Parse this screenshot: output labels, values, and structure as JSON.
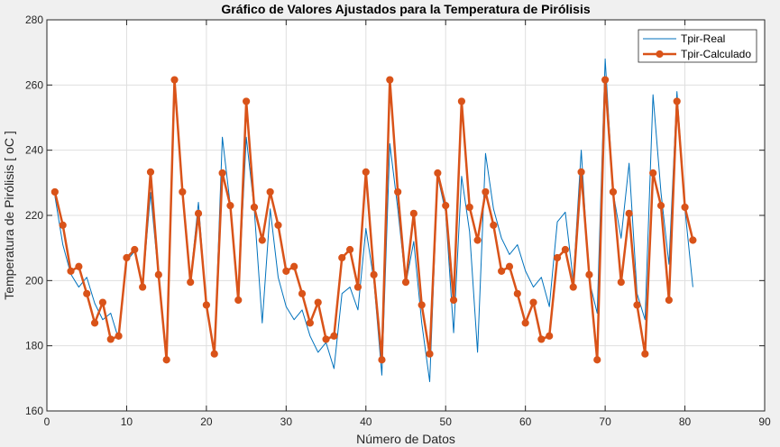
{
  "chart_data": {
    "type": "line",
    "title": "Gráfico de Valores Ajustados para la Temperatura de Pirólisis",
    "xlabel": "Número de Datos",
    "ylabel": "Temperatura de Pirólisis [ oC ]",
    "xlim": [
      0,
      90
    ],
    "ylim": [
      160,
      280
    ],
    "xticks": [
      0,
      10,
      20,
      30,
      40,
      50,
      60,
      70,
      80,
      90
    ],
    "yticks": [
      160,
      180,
      200,
      220,
      240,
      260,
      280
    ],
    "grid": true,
    "legend_position": "top-right",
    "x": [
      1,
      2,
      3,
      4,
      5,
      6,
      7,
      8,
      9,
      10,
      11,
      12,
      13,
      14,
      15,
      16,
      17,
      18,
      19,
      20,
      21,
      22,
      23,
      24,
      25,
      26,
      27,
      28,
      29,
      30,
      31,
      32,
      33,
      34,
      35,
      36,
      37,
      38,
      39,
      40,
      41,
      42,
      43,
      44,
      45,
      46,
      47,
      48,
      49,
      50,
      51,
      52,
      53,
      54,
      55,
      56,
      57,
      58,
      59,
      60,
      61,
      62,
      63,
      64,
      65,
      66,
      67,
      68,
      69,
      70,
      71,
      72,
      73,
      74,
      75,
      76,
      77,
      78,
      79,
      80,
      81
    ],
    "series": [
      {
        "name": "Tpir-Real",
        "color": "#0072bd",
        "marker": "none",
        "values": [
          226,
          211,
          202,
          198,
          201,
          193,
          188,
          190,
          182,
          206,
          209,
          198,
          227,
          201,
          177,
          261,
          227,
          200,
          224,
          192,
          177,
          244,
          223,
          195,
          244,
          222,
          187,
          222,
          201,
          192,
          188,
          191,
          183,
          178,
          181,
          173,
          196,
          198,
          191,
          216,
          200,
          171,
          242,
          222,
          199,
          212,
          187,
          169,
          232,
          221,
          184,
          232,
          215,
          178,
          239,
          222,
          213,
          208,
          211,
          203,
          198,
          201,
          192,
          218,
          221,
          200,
          240,
          200,
          190,
          268,
          227,
          213,
          236,
          196,
          188,
          257,
          227,
          205,
          258,
          222,
          198
        ]
      },
      {
        "name": "Tpir-Calculado",
        "color": "#d95319",
        "marker": "circle",
        "values": [
          227.2,
          217,
          202.9,
          204.3,
          196,
          187,
          193.3,
          182,
          183,
          207,
          209.5,
          198,
          233.3,
          201.8,
          175.7,
          261.6,
          227.2,
          199.5,
          220.6,
          192.5,
          177.5,
          233,
          223,
          194,
          255,
          222.5,
          212.4,
          227.2,
          217,
          202.9,
          204.3,
          196,
          187,
          193.3,
          182,
          183,
          207,
          209.5,
          198,
          233.3,
          201.8,
          175.7,
          261.6,
          227.2,
          199.5,
          220.6,
          192.5,
          177.5,
          233,
          223,
          194,
          255,
          222.5,
          212.4,
          227.2,
          217,
          202.9,
          204.3,
          196,
          187,
          193.3,
          182,
          183,
          207,
          209.5,
          198,
          233.3,
          201.8,
          175.7,
          261.6,
          227.2,
          199.5,
          220.6,
          192.5,
          177.5,
          233,
          223,
          194,
          255,
          222.5,
          212.4
        ]
      }
    ]
  }
}
